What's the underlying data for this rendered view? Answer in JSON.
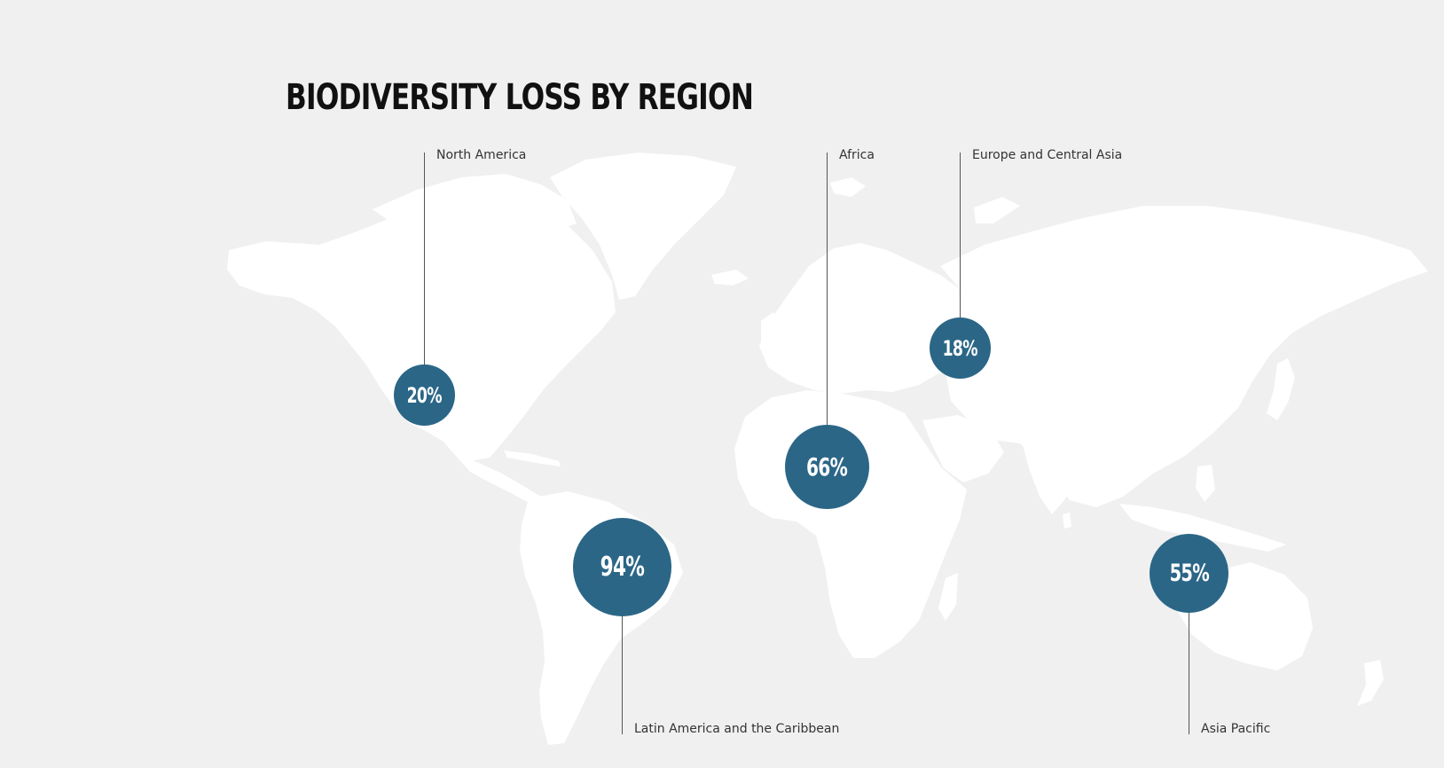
{
  "title": "BIODIVERSITY LOSS BY REGION",
  "colors": {
    "background": "#f0f0f0",
    "land": "#ffffff",
    "bubble": "#2b6687",
    "bubble_text": "#ffffff",
    "stem": "#555555",
    "label_text": "#333333",
    "title_text": "#111111"
  },
  "regions": [
    {
      "name": "North America",
      "value_label": "20%",
      "value": 20
    },
    {
      "name": "Africa",
      "value_label": "66%",
      "value": 66
    },
    {
      "name": "Europe and Central Asia",
      "value_label": "18%",
      "value": 18
    },
    {
      "name": "Latin America and the Caribbean",
      "value_label": "94%",
      "value": 94
    },
    {
      "name": "Asia Pacific",
      "value_label": "55%",
      "value": 55
    }
  ]
}
